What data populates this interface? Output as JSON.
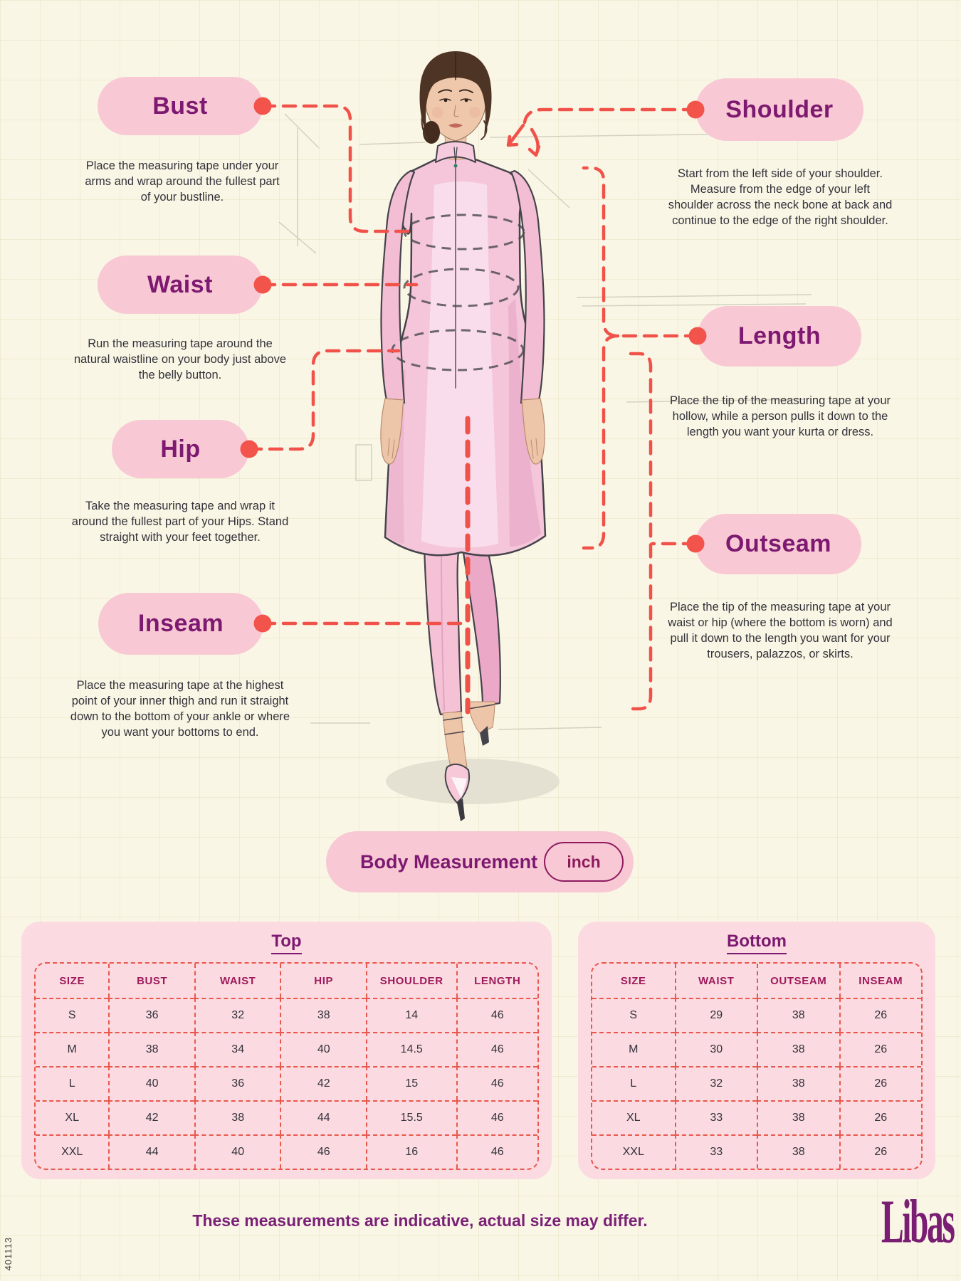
{
  "colors": {
    "background": "#FAF6E5",
    "pill_pink": "#F8C9D4",
    "card_pink": "#FBDBE1",
    "label_purple": "#7D1970",
    "table_header_magenta": "#9E1A5C",
    "footer_purple": "#7B2077",
    "connector_red": "#F0524A",
    "body_text": "#33323B",
    "brand_purple": "#7A1E74"
  },
  "code": "401113",
  "measurements": {
    "left": [
      {
        "label": "Bust",
        "description": "Place the measuring tape under your arms and wrap around the fullest part of your bustline."
      },
      {
        "label": "Waist",
        "description": "Run the measuring tape around the natural waistline on your body just above the belly button."
      },
      {
        "label": "Hip",
        "description": "Take the measuring tape and wrap it around the fullest part of your Hips. Stand straight with your feet together."
      },
      {
        "label": "Inseam",
        "description": "Place the measuring tape at the highest point of your inner thigh and run it straight down to the bottom of your ankle or where you want your bottoms to end."
      }
    ],
    "right": [
      {
        "label": "Shoulder",
        "description": "Start from the left side of your shoulder. Measure from the edge of your left shoulder across the neck bone at back and continue to the edge of the right shoulder."
      },
      {
        "label": "Length",
        "description": "Place the tip of the measuring tape at your hollow, while a person pulls it down to the length you want your kurta or dress."
      },
      {
        "label": "Outseam",
        "description": "Place the tip of the measuring tape at your waist or hip (where the bottom is worn) and pull it down to the length you want for your trousers, palazzos, or skirts."
      }
    ]
  },
  "body_measurement": {
    "title": "Body Measurement",
    "unit": "inch"
  },
  "tables": {
    "top": {
      "title": "Top",
      "headers": [
        "SIZE",
        "BUST",
        "WAIST",
        "HIP",
        "SHOULDER",
        "LENGTH"
      ],
      "rows": [
        [
          "S",
          "36",
          "32",
          "38",
          "14",
          "46"
        ],
        [
          "M",
          "38",
          "34",
          "40",
          "14.5",
          "46"
        ],
        [
          "L",
          "40",
          "36",
          "42",
          "15",
          "46"
        ],
        [
          "XL",
          "42",
          "38",
          "44",
          "15.5",
          "46"
        ],
        [
          "XXL",
          "44",
          "40",
          "46",
          "16",
          "46"
        ]
      ]
    },
    "bottom": {
      "title": "Bottom",
      "headers": [
        "SIZE",
        "WAIST",
        "OUTSEAM",
        "INSEAM"
      ],
      "rows": [
        [
          "S",
          "29",
          "38",
          "26"
        ],
        [
          "M",
          "30",
          "38",
          "26"
        ],
        [
          "L",
          "32",
          "38",
          "26"
        ],
        [
          "XL",
          "33",
          "38",
          "26"
        ],
        [
          "XXL",
          "33",
          "38",
          "26"
        ]
      ]
    }
  },
  "footer": {
    "disclaimer": "These measurements are indicative, actual size may differ.",
    "brand": "Libas"
  }
}
